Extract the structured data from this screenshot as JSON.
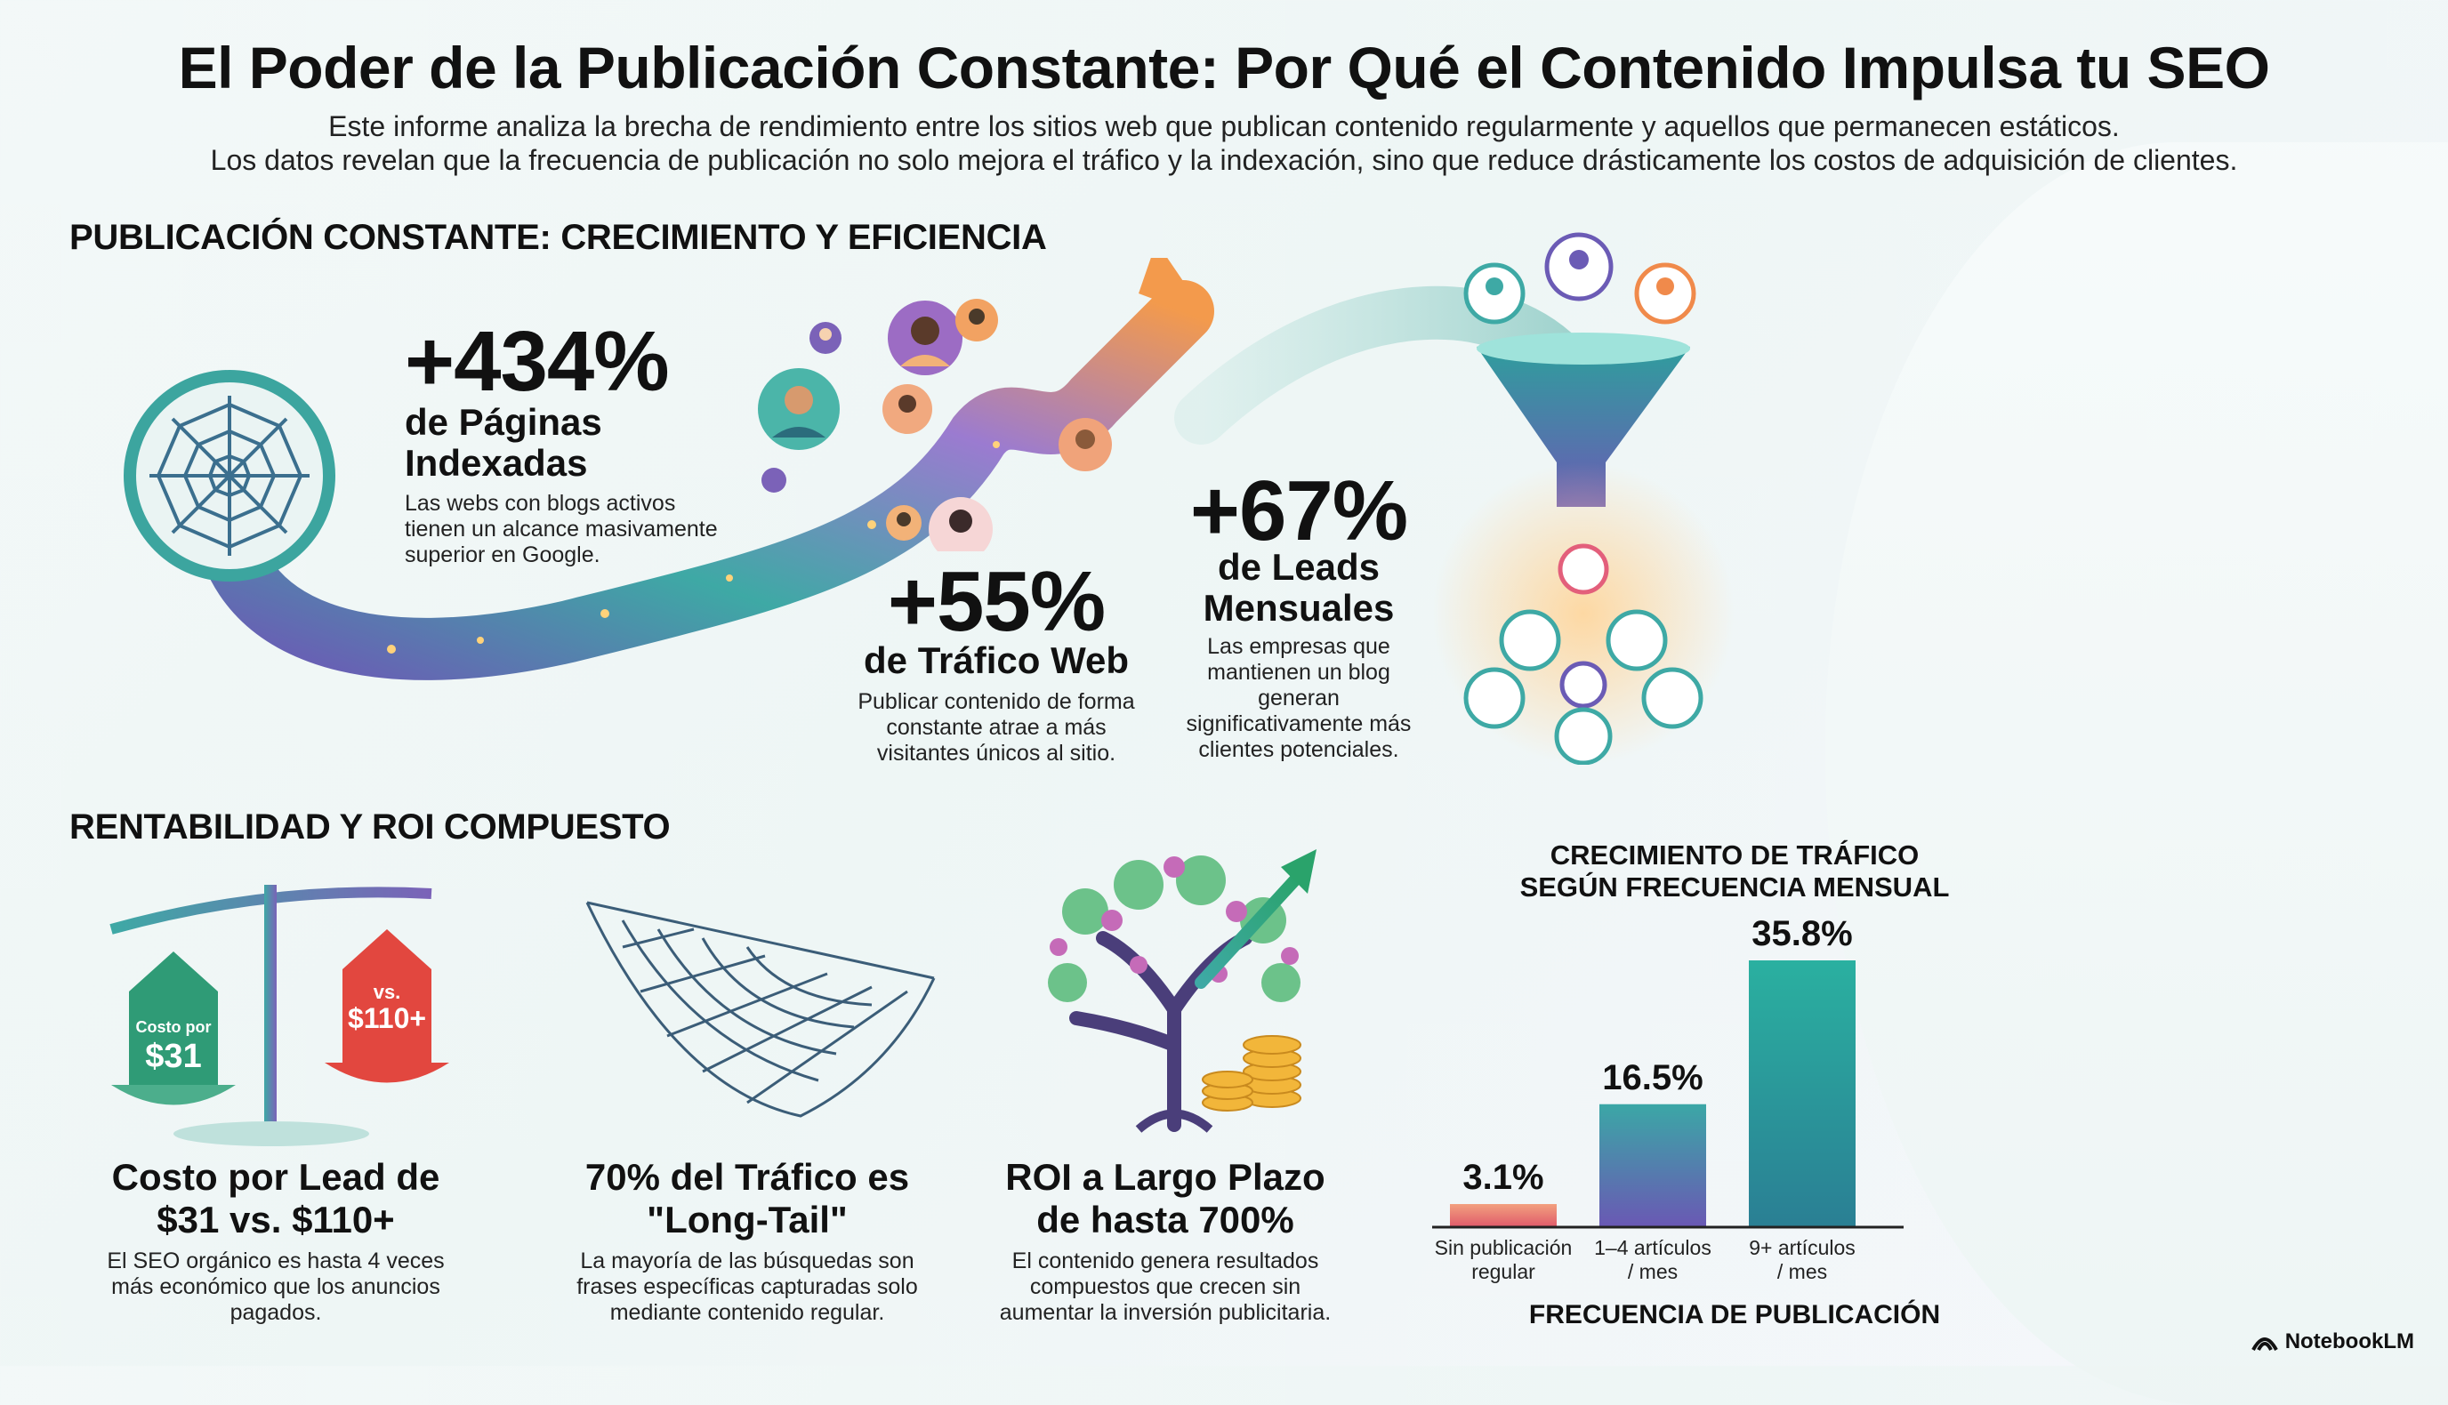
{
  "header": {
    "title": "El Poder de la Publicación Constante: Por Qué el Contenido Impulsa tu SEO",
    "subtitle_line1": "Este informe analiza la brecha de rendimiento entre los sitios web que publican contenido regularmente y aquellos que permanecen estáticos.",
    "subtitle_line2": "Los datos revelan que la frecuencia de publicación no solo mejora el tráfico y la indexación, sino que reduce drásticamente los costos de adquisición de clientes."
  },
  "section1": {
    "heading": "PUBLICACIÓN CONSTANTE: CRECIMIENTO Y EFICIENCIA",
    "stats": [
      {
        "value": "+434%",
        "label_line1": "de Páginas",
        "label_line2": "Indexadas",
        "desc_lines": [
          "Las webs con blogs activos",
          "tienen un alcance masivamente",
          "superior en Google."
        ],
        "icon": "spider-web-icon"
      },
      {
        "value": "+55%",
        "label_line1": "de Tráfico Web",
        "desc_lines": [
          "Publicar contenido de forma",
          "constante atrae a más",
          "visitantes únicos al sitio."
        ],
        "icon": "growth-arrow-icon"
      },
      {
        "value": "+67%",
        "label_line1": "de Leads",
        "label_line2": "Mensuales",
        "desc_lines": [
          "Las empresas que",
          "mantienen un blog",
          "generan",
          "significativamente más",
          "clientes potenciales."
        ],
        "icon": "funnel-icon"
      }
    ]
  },
  "section2": {
    "heading": "RENTABILIDAD Y ROI COMPUESTO",
    "cards": [
      {
        "title_line1": "Costo por Lead de",
        "title_line2": "$31 vs. $110+",
        "desc_lines": [
          "El SEO orgánico es hasta 4 veces",
          "más económico que los anuncios",
          "pagados."
        ],
        "icon": "scale-icon",
        "tag_left_small": "Costo por",
        "tag_left_big": "$31",
        "tag_right_small": "vs.",
        "tag_right_big": "$110+"
      },
      {
        "title_line1": "70% del Tráfico es",
        "title_line2": "\"Long-Tail\"",
        "desc_lines": [
          "La mayoría de las búsquedas son",
          "frases específicas capturadas solo",
          "mediante contenido regular."
        ],
        "icon": "net-icon"
      },
      {
        "title_line1": "ROI a Largo Plazo",
        "title_line2": "de hasta 700%",
        "desc_lines": [
          "El contenido genera resultados",
          "compuestos que crecen sin",
          "aumentar la inversión publicitaria."
        ],
        "icon": "money-tree-icon"
      }
    ]
  },
  "chart_data": {
    "type": "bar",
    "title_line1": "CRECIMIENTO DE TRÁFICO",
    "title_line2": "SEGÚN FRECUENCIA MENSUAL",
    "xlabel": "FRECUENCIA DE PUBLICACIÓN",
    "categories": [
      [
        "Sin publicación",
        "regular"
      ],
      [
        "1–4 artículos",
        "/ mes"
      ],
      [
        "9+ artículos",
        "/ mes"
      ]
    ],
    "values": [
      3.1,
      16.5,
      35.8
    ],
    "value_labels": [
      "3.1%",
      "16.5%",
      "35.8%"
    ],
    "ylim": [
      0,
      35.8
    ],
    "bar_colors": [
      [
        "#f2a07f",
        "#e05a6a"
      ],
      [
        "#3ba7a6",
        "#6a58b4"
      ],
      [
        "#2ab0a0",
        "#2a7f94"
      ]
    ]
  },
  "footer": {
    "brand": "NotebookLM",
    "brand_icon": "notebooklm-logo-icon"
  },
  "colors": {
    "teal": "#2aa39b",
    "purple": "#6b5bb5",
    "orange": "#f08a4b",
    "pink": "#e35f7b"
  }
}
